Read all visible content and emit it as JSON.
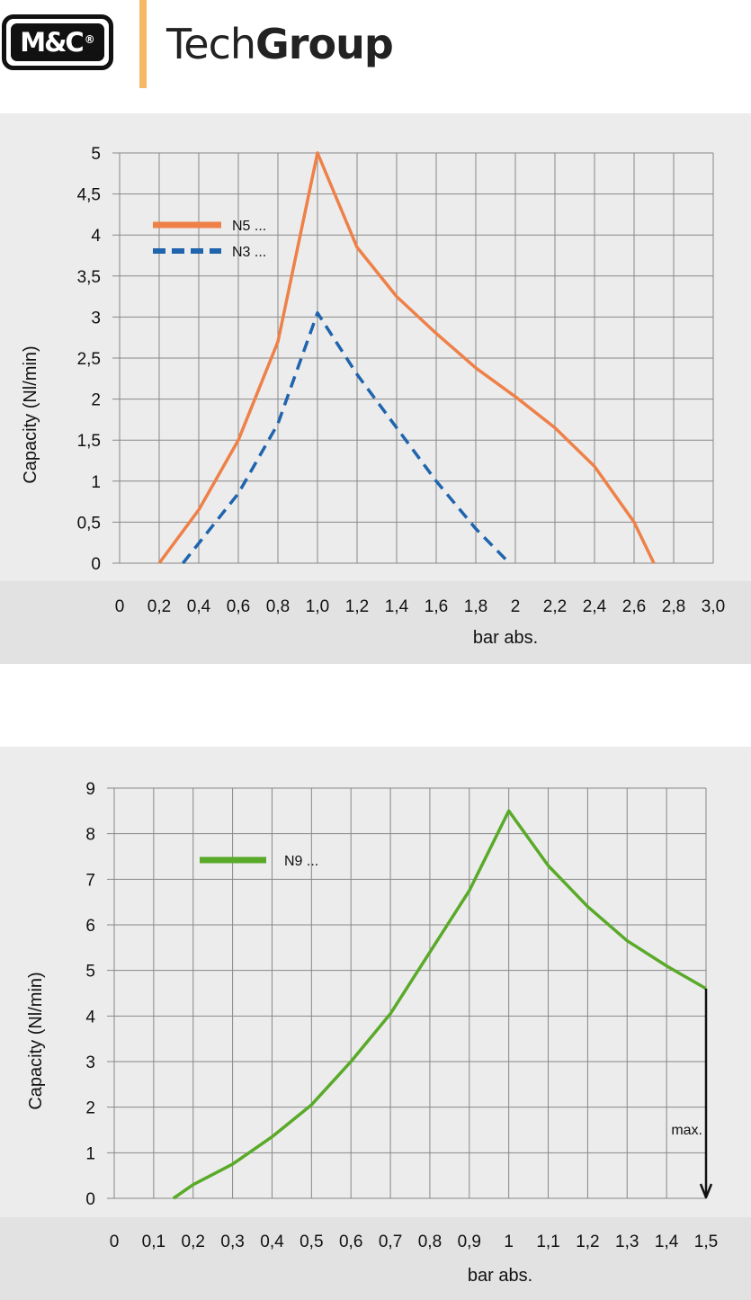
{
  "header": {
    "logo_text": "M&C",
    "logo_reg": "®",
    "brand_light": "Tech",
    "brand_bold": "Group"
  },
  "colors": {
    "plot_bg": "#ececec",
    "band_bg": "#e2e2e2",
    "grid": "#888888",
    "n5": "#ee8048",
    "n3": "#1f64ad",
    "n9": "#5aaa2a",
    "accent_bar": "#f7b866"
  },
  "chart_data": [
    {
      "type": "line",
      "ylabel": "Capacity (Nl/min)",
      "xlabel": "bar abs.",
      "xlim": [
        0,
        3.0
      ],
      "ylim": [
        0,
        5
      ],
      "grid": true,
      "legend_position": "top-left",
      "x_tick_labels": [
        "0",
        "0,2",
        "0,4",
        "0,6",
        "0,8",
        "1,0",
        "1,2",
        "1,4",
        "1,6",
        "1,8",
        "2",
        "2,2",
        "2,4",
        "2,6",
        "2,8",
        "3,0"
      ],
      "x_ticks": [
        0,
        0.2,
        0.4,
        0.6,
        0.8,
        1.0,
        1.2,
        1.4,
        1.6,
        1.8,
        2.0,
        2.2,
        2.4,
        2.6,
        2.8,
        3.0
      ],
      "y_tick_labels": [
        "0",
        "0,5",
        "1",
        "1,5",
        "2",
        "2,5",
        "3",
        "3,5",
        "4",
        "4,5",
        "5"
      ],
      "y_ticks": [
        0,
        0.5,
        1,
        1.5,
        2,
        2.5,
        3,
        3.5,
        4,
        4.5,
        5
      ],
      "series": [
        {
          "name": "N5 ...",
          "style": "solid",
          "color": "#ee8048",
          "x": [
            0.2,
            0.4,
            0.6,
            0.8,
            1.0,
            1.2,
            1.4,
            1.6,
            1.8,
            2.0,
            2.2,
            2.4,
            2.6,
            2.7
          ],
          "y": [
            0,
            0.65,
            1.5,
            2.7,
            5.0,
            3.85,
            3.25,
            2.8,
            2.38,
            2.03,
            1.65,
            1.18,
            0.5,
            0
          ]
        },
        {
          "name": "N3 ...",
          "style": "dashed",
          "color": "#1f64ad",
          "x": [
            0.32,
            0.6,
            0.8,
            1.0,
            1.2,
            1.4,
            1.6,
            1.8,
            1.97
          ],
          "y": [
            0,
            0.85,
            1.7,
            3.05,
            2.3,
            1.65,
            1.0,
            0.42,
            0
          ]
        }
      ]
    },
    {
      "type": "line",
      "ylabel": "Capacity (Nl/min)",
      "xlabel": "bar abs.",
      "xlim": [
        0,
        1.5
      ],
      "ylim": [
        0,
        9
      ],
      "grid": true,
      "legend_position": "top-left",
      "x_tick_labels": [
        "0",
        "0,1",
        "0,2",
        "0,3",
        "0,4",
        "0,5",
        "0,6",
        "0,7",
        "0,8",
        "0,9",
        "1",
        "1,1",
        "1,2",
        "1,3",
        "1,4",
        "1,5"
      ],
      "x_ticks": [
        0,
        0.1,
        0.2,
        0.3,
        0.4,
        0.5,
        0.6,
        0.7,
        0.8,
        0.9,
        1.0,
        1.1,
        1.2,
        1.3,
        1.4,
        1.5
      ],
      "y_tick_labels": [
        "0",
        "1",
        "2",
        "3",
        "4",
        "5",
        "6",
        "7",
        "8",
        "9"
      ],
      "y_ticks": [
        0,
        1,
        2,
        3,
        4,
        5,
        6,
        7,
        8,
        9
      ],
      "series": [
        {
          "name": "N9 ...",
          "style": "solid",
          "color": "#5aaa2a",
          "x": [
            0.15,
            0.2,
            0.3,
            0.4,
            0.5,
            0.6,
            0.7,
            0.8,
            0.9,
            1.0,
            1.1,
            1.2,
            1.3,
            1.4,
            1.5
          ],
          "y": [
            0,
            0.3,
            0.75,
            1.35,
            2.05,
            3.0,
            4.05,
            5.4,
            6.75,
            8.5,
            7.3,
            6.4,
            5.65,
            5.1,
            4.6
          ]
        }
      ],
      "annotations": [
        {
          "text": "max.",
          "x": 1.5,
          "y_from": 4.6,
          "y_to": 0
        }
      ]
    }
  ]
}
